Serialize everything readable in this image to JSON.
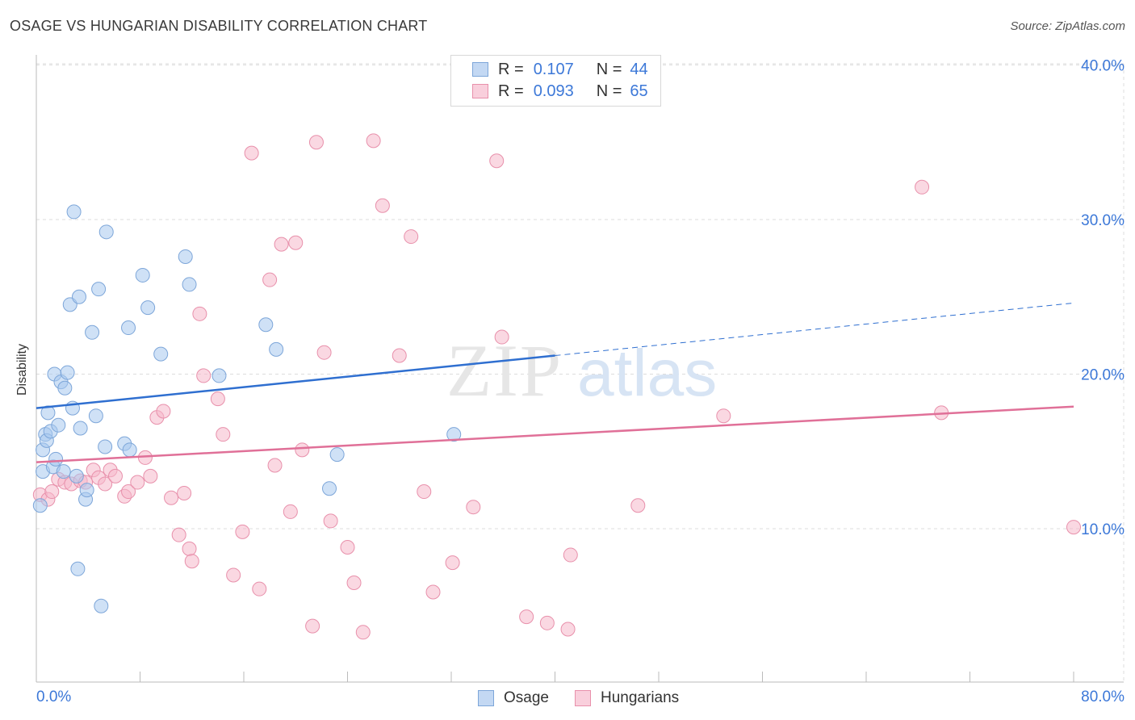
{
  "title": "OSAGE VS HUNGARIAN DISABILITY CORRELATION CHART",
  "source": "Source: ZipAtlas.com",
  "watermark": {
    "zip": "ZIP",
    "atlas": "atlas"
  },
  "legend": {
    "rows": [
      {
        "r_label": "R =",
        "r_value": "0.107",
        "n_label": "N =",
        "n_value": "44"
      },
      {
        "r_label": "R =",
        "r_value": "0.093",
        "n_label": "N =",
        "n_value": "65"
      }
    ]
  },
  "bottom_legend": {
    "series1": "Osage",
    "series2": "Hungarians"
  },
  "colors": {
    "osage_fill": "#a8c8ee",
    "osage_stroke": "#7da6d9",
    "osage_line": "#2f6fd0",
    "hung_fill": "#f5b8cb",
    "hung_stroke": "#e890ab",
    "hung_line": "#e07098",
    "tick_text": "#3c78d8",
    "grid": "#dddddd"
  },
  "chart_data": {
    "type": "scatter",
    "title": "OSAGE VS HUNGARIAN DISABILITY CORRELATION CHART",
    "xlabel": "",
    "ylabel": "Disability",
    "xlim": [
      0,
      80
    ],
    "ylim": [
      0,
      42
    ],
    "x_tick_labels": [
      "0.0%",
      "80.0%"
    ],
    "y_ticks": [
      10,
      20,
      30,
      40
    ],
    "y_tick_labels": [
      "10.0%",
      "20.0%",
      "30.0%",
      "40.0%"
    ],
    "grid": true,
    "series": [
      {
        "name": "Osage",
        "R": 0.107,
        "N": 44,
        "trend": {
          "x0": 0,
          "y0": 17.8,
          "x1": 40,
          "y1": 21.2,
          "dashed_to_x": 80,
          "dashed_to_y": 24.6
        },
        "points": [
          [
            0.3,
            11.5
          ],
          [
            0.5,
            13.7
          ],
          [
            0.5,
            15.1
          ],
          [
            0.7,
            16.1
          ],
          [
            0.8,
            15.7
          ],
          [
            0.9,
            17.5
          ],
          [
            1.1,
            16.3
          ],
          [
            1.3,
            14.0
          ],
          [
            1.4,
            20.0
          ],
          [
            1.5,
            14.5
          ],
          [
            1.7,
            16.7
          ],
          [
            1.9,
            19.5
          ],
          [
            2.1,
            13.7
          ],
          [
            2.2,
            19.1
          ],
          [
            2.4,
            20.1
          ],
          [
            2.6,
            24.5
          ],
          [
            2.8,
            17.8
          ],
          [
            2.9,
            30.5
          ],
          [
            3.1,
            13.4
          ],
          [
            3.2,
            7.4
          ],
          [
            3.3,
            25.0
          ],
          [
            3.4,
            16.5
          ],
          [
            3.8,
            11.9
          ],
          [
            3.9,
            12.5
          ],
          [
            4.3,
            22.7
          ],
          [
            4.6,
            17.3
          ],
          [
            4.8,
            25.5
          ],
          [
            5.0,
            5.0
          ],
          [
            5.3,
            15.3
          ],
          [
            5.4,
            29.2
          ],
          [
            6.8,
            15.5
          ],
          [
            7.1,
            23.0
          ],
          [
            7.2,
            15.1
          ],
          [
            8.2,
            26.4
          ],
          [
            8.6,
            24.3
          ],
          [
            9.6,
            21.3
          ],
          [
            11.5,
            27.6
          ],
          [
            11.8,
            25.8
          ],
          [
            14.1,
            19.9
          ],
          [
            17.7,
            23.2
          ],
          [
            18.5,
            21.6
          ],
          [
            22.6,
            12.6
          ],
          [
            23.2,
            14.8
          ],
          [
            32.2,
            16.1
          ]
        ]
      },
      {
        "name": "Hungarians",
        "R": 0.093,
        "N": 65,
        "trend": {
          "x0": 0,
          "y0": 14.3,
          "x1": 80,
          "y1": 17.9
        },
        "points": [
          [
            0.3,
            12.2
          ],
          [
            0.9,
            11.9
          ],
          [
            1.2,
            12.4
          ],
          [
            1.7,
            13.2
          ],
          [
            2.2,
            13.0
          ],
          [
            2.7,
            12.9
          ],
          [
            3.4,
            13.1
          ],
          [
            3.8,
            13.0
          ],
          [
            4.4,
            13.8
          ],
          [
            4.8,
            13.3
          ],
          [
            5.3,
            12.9
          ],
          [
            5.7,
            13.8
          ],
          [
            6.1,
            13.4
          ],
          [
            6.8,
            12.1
          ],
          [
            7.1,
            12.4
          ],
          [
            7.8,
            13.0
          ],
          [
            8.4,
            14.6
          ],
          [
            8.8,
            13.4
          ],
          [
            9.3,
            17.2
          ],
          [
            9.8,
            17.6
          ],
          [
            10.4,
            12.0
          ],
          [
            11.0,
            9.6
          ],
          [
            11.4,
            12.3
          ],
          [
            11.8,
            8.7
          ],
          [
            12.0,
            7.9
          ],
          [
            12.6,
            23.9
          ],
          [
            12.9,
            19.9
          ],
          [
            14.0,
            18.4
          ],
          [
            14.4,
            16.1
          ],
          [
            15.2,
            7.0
          ],
          [
            15.9,
            9.8
          ],
          [
            16.6,
            34.3
          ],
          [
            17.2,
            6.1
          ],
          [
            18.0,
            26.1
          ],
          [
            18.4,
            14.1
          ],
          [
            18.9,
            28.4
          ],
          [
            19.6,
            11.1
          ],
          [
            20.0,
            28.5
          ],
          [
            20.5,
            15.1
          ],
          [
            21.3,
            3.7
          ],
          [
            21.6,
            35.0
          ],
          [
            22.2,
            21.4
          ],
          [
            22.7,
            10.5
          ],
          [
            24.0,
            8.8
          ],
          [
            24.5,
            6.5
          ],
          [
            25.2,
            3.3
          ],
          [
            26.0,
            35.1
          ],
          [
            26.7,
            30.9
          ],
          [
            28.0,
            21.2
          ],
          [
            28.9,
            28.9
          ],
          [
            29.9,
            12.4
          ],
          [
            30.6,
            5.9
          ],
          [
            32.1,
            7.8
          ],
          [
            33.7,
            11.4
          ],
          [
            35.5,
            33.8
          ],
          [
            35.9,
            22.4
          ],
          [
            37.8,
            4.3
          ],
          [
            39.4,
            3.9
          ],
          [
            41.0,
            3.5
          ],
          [
            41.2,
            8.3
          ],
          [
            46.4,
            11.5
          ],
          [
            53.0,
            17.3
          ],
          [
            68.3,
            32.1
          ],
          [
            69.8,
            17.5
          ],
          [
            80.0,
            10.1
          ]
        ]
      }
    ]
  }
}
